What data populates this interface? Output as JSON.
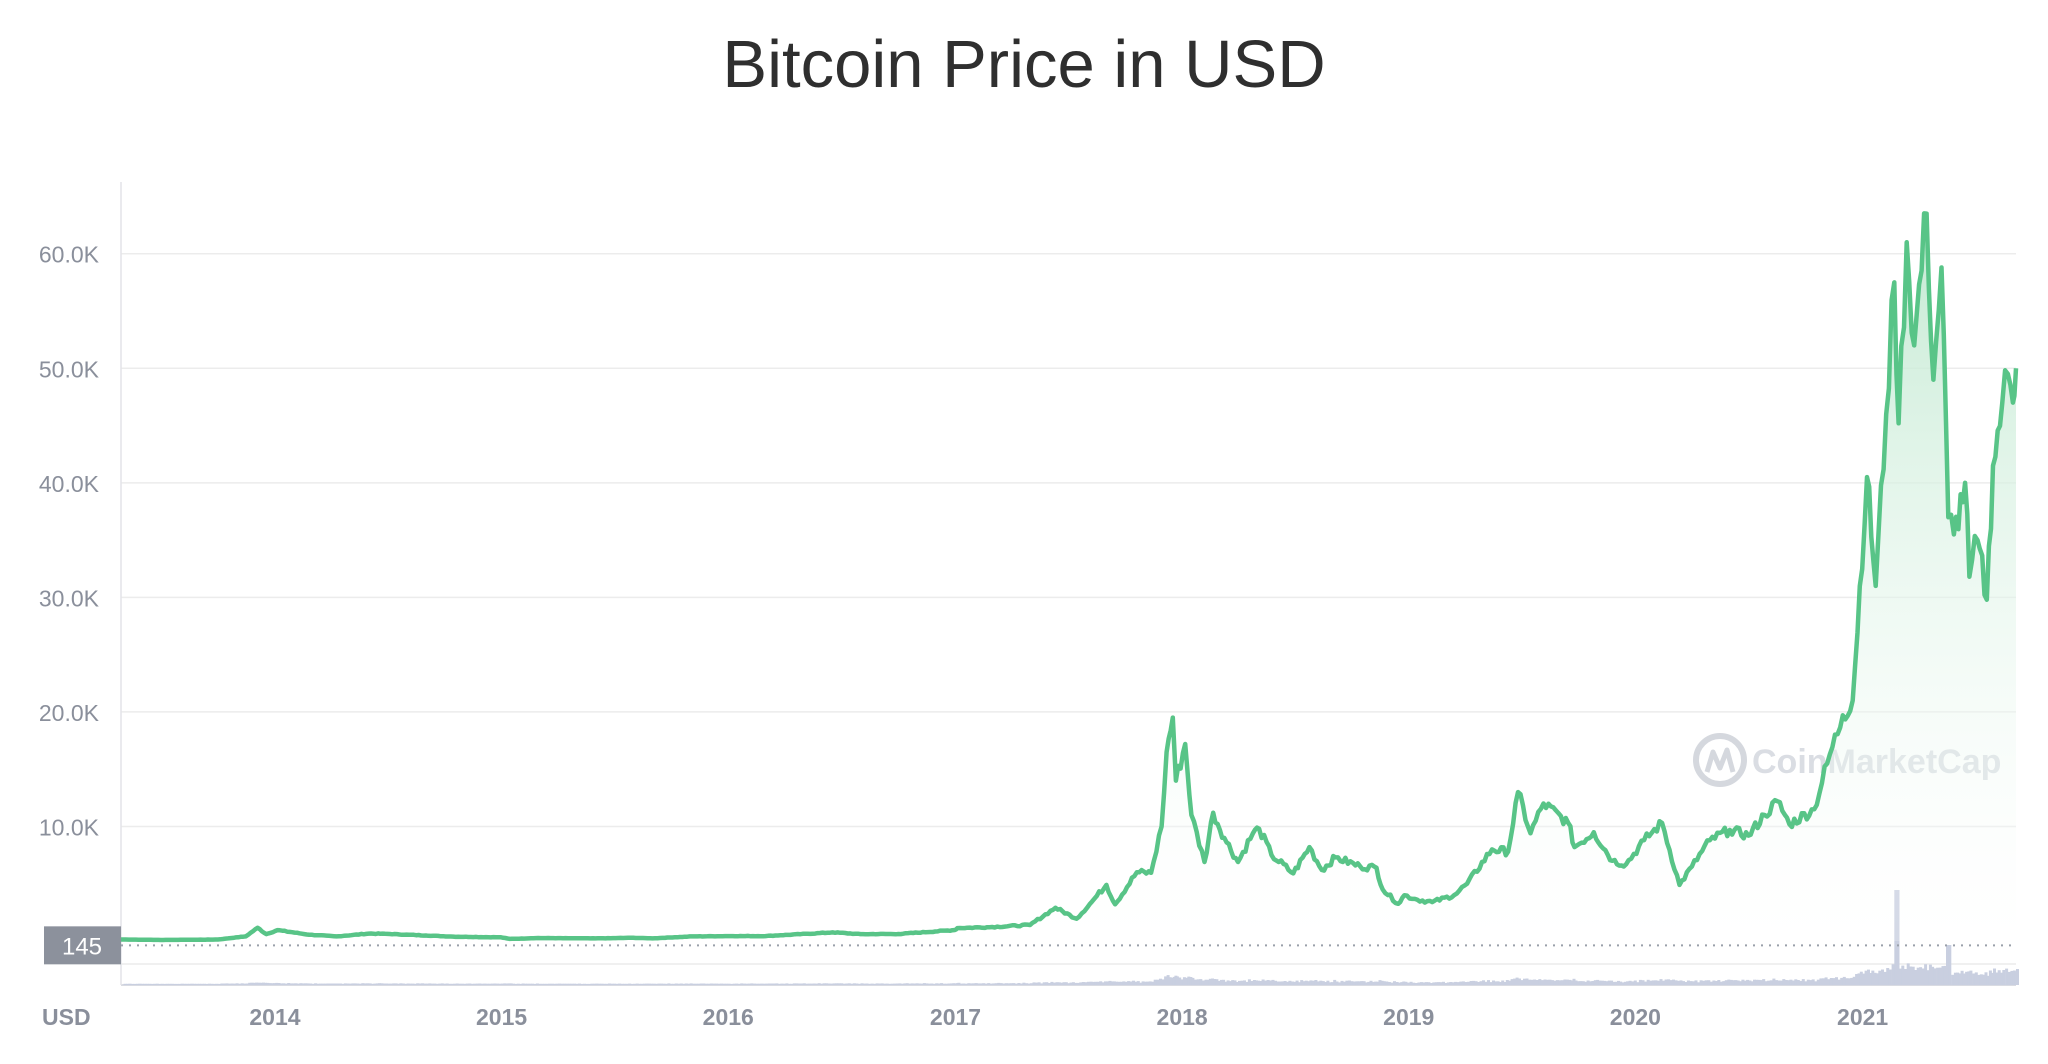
{
  "chart_data": {
    "type": "area",
    "title": "Bitcoin Price in USD",
    "xlabel": "",
    "ylabel": "USD",
    "x_unit_label": "USD",
    "x_range": [
      "2013-04-28",
      "2021-09-05"
    ],
    "x_ticks": [
      "2014",
      "2015",
      "2016",
      "2017",
      "2018",
      "2019",
      "2020",
      "2021"
    ],
    "ylim": [
      0,
      66000
    ],
    "y_ticks": [
      "10.0K",
      "20.0K",
      "30.0K",
      "40.0K",
      "50.0K",
      "60.0K"
    ],
    "y_tick_values": [
      10000,
      20000,
      30000,
      40000,
      50000,
      60000
    ],
    "baseline_label": "145",
    "baseline_value": 145,
    "grid": true,
    "legend": "none",
    "watermark": "CoinMarketCap",
    "colors": {
      "line": "#58c487",
      "fill_top": "#cdeed9",
      "volume": "#c9cfe0",
      "grid": "#ececec",
      "tick_text": "#8a8f9b",
      "baseline_box": "#8c919c"
    },
    "series": [
      {
        "name": "Price",
        "points": [
          [
            "2013-04-28",
            135
          ],
          [
            "2013-07-01",
            90
          ],
          [
            "2013-10-01",
            130
          ],
          [
            "2013-11-15",
            400
          ],
          [
            "2013-12-04",
            1150
          ],
          [
            "2013-12-18",
            600
          ],
          [
            "2014-01-05",
            950
          ],
          [
            "2014-02-25",
            550
          ],
          [
            "2014-04-10",
            400
          ],
          [
            "2014-06-01",
            650
          ],
          [
            "2014-07-01",
            620
          ],
          [
            "2014-09-01",
            480
          ],
          [
            "2014-10-15",
            380
          ],
          [
            "2014-12-31",
            320
          ],
          [
            "2015-01-14",
            180
          ],
          [
            "2015-03-01",
            260
          ],
          [
            "2015-06-01",
            225
          ],
          [
            "2015-08-01",
            280
          ],
          [
            "2015-09-01",
            230
          ],
          [
            "2015-11-04",
            400
          ],
          [
            "2015-12-31",
            430
          ],
          [
            "2016-03-01",
            430
          ],
          [
            "2016-06-17",
            750
          ],
          [
            "2016-08-01",
            600
          ],
          [
            "2016-10-01",
            610
          ],
          [
            "2016-12-31",
            960
          ],
          [
            "2017-01-04",
            1130
          ],
          [
            "2017-03-01",
            1220
          ],
          [
            "2017-05-01",
            1400
          ],
          [
            "2017-06-11",
            2900
          ],
          [
            "2017-07-15",
            1950
          ],
          [
            "2017-08-05",
            3200
          ],
          [
            "2017-09-01",
            4900
          ],
          [
            "2017-09-15",
            3200
          ],
          [
            "2017-10-20",
            6000
          ],
          [
            "2017-11-12",
            5950
          ],
          [
            "2017-11-29",
            10000
          ],
          [
            "2017-12-07",
            16500
          ],
          [
            "2017-12-17",
            19500
          ],
          [
            "2017-12-22",
            14000
          ],
          [
            "2018-01-06",
            17200
          ],
          [
            "2018-01-16",
            11000
          ],
          [
            "2018-02-06",
            6900
          ],
          [
            "2018-02-20",
            11200
          ],
          [
            "2018-03-10",
            9000
          ],
          [
            "2018-04-01",
            6900
          ],
          [
            "2018-04-25",
            9400
          ],
          [
            "2018-05-05",
            9800
          ],
          [
            "2018-05-25",
            7500
          ],
          [
            "2018-06-29",
            5900
          ],
          [
            "2018-07-25",
            8200
          ],
          [
            "2018-08-14",
            6200
          ],
          [
            "2018-09-05",
            7300
          ],
          [
            "2018-10-15",
            6500
          ],
          [
            "2018-11-10",
            6400
          ],
          [
            "2018-11-20",
            4500
          ],
          [
            "2018-12-15",
            3250
          ],
          [
            "2018-12-25",
            4000
          ],
          [
            "2019-01-15",
            3600
          ],
          [
            "2019-02-08",
            3400
          ],
          [
            "2019-03-15",
            4000
          ],
          [
            "2019-04-05",
            5000
          ],
          [
            "2019-05-15",
            8000
          ],
          [
            "2019-06-10",
            7800
          ],
          [
            "2019-06-26",
            13000
          ],
          [
            "2019-07-16",
            9400
          ],
          [
            "2019-08-06",
            12000
          ],
          [
            "2019-09-15",
            10300
          ],
          [
            "2019-09-25",
            8200
          ],
          [
            "2019-10-26",
            9500
          ],
          [
            "2019-11-25",
            7000
          ],
          [
            "2019-12-17",
            6700
          ],
          [
            "2020-01-15",
            8800
          ],
          [
            "2020-02-13",
            10300
          ],
          [
            "2020-03-12",
            4900
          ],
          [
            "2020-04-01",
            6500
          ],
          [
            "2020-04-30",
            8800
          ],
          [
            "2020-06-01",
            9700
          ],
          [
            "2020-07-01",
            9200
          ],
          [
            "2020-07-27",
            11000
          ],
          [
            "2020-08-17",
            12200
          ],
          [
            "2020-09-05",
            10200
          ],
          [
            "2020-10-15",
            11500
          ],
          [
            "2020-11-05",
            15500
          ],
          [
            "2020-11-30",
            19700
          ],
          [
            "2020-12-16",
            21000
          ],
          [
            "2021-01-08",
            40500
          ],
          [
            "2021-01-22",
            31000
          ],
          [
            "2021-02-08",
            46000
          ],
          [
            "2021-02-21",
            57500
          ],
          [
            "2021-02-28",
            45200
          ],
          [
            "2021-03-13",
            61000
          ],
          [
            "2021-03-25",
            52000
          ],
          [
            "2021-04-14",
            63500
          ],
          [
            "2021-04-25",
            49000
          ],
          [
            "2021-05-08",
            58800
          ],
          [
            "2021-05-19",
            37000
          ],
          [
            "2021-05-28",
            35500
          ],
          [
            "2021-06-15",
            40000
          ],
          [
            "2021-06-22",
            31800
          ],
          [
            "2021-07-05",
            35000
          ],
          [
            "2021-07-20",
            29800
          ],
          [
            "2021-07-30",
            41500
          ],
          [
            "2021-08-14",
            47000
          ],
          [
            "2021-08-23",
            49500
          ],
          [
            "2021-08-31",
            47000
          ],
          [
            "2021-09-05",
            50000
          ]
        ]
      }
    ]
  }
}
